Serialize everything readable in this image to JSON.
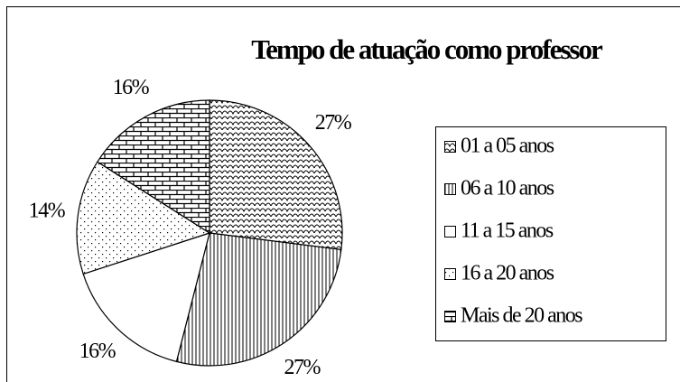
{
  "chart_data": {
    "type": "pie",
    "title": "Tempo de atuação como professor",
    "categories": [
      "01 a 05 anos",
      "06 a 10 anos",
      "11 a 15 anos",
      "16 a 20 anos",
      "Mais de 20 anos"
    ],
    "values": [
      27,
      27,
      16,
      14,
      16
    ],
    "value_labels": [
      "27%",
      "27%",
      "16%",
      "14%",
      "16%"
    ],
    "patterns": [
      "scales",
      "vertical",
      "plain",
      "dots",
      "brick"
    ],
    "legend": "right"
  }
}
